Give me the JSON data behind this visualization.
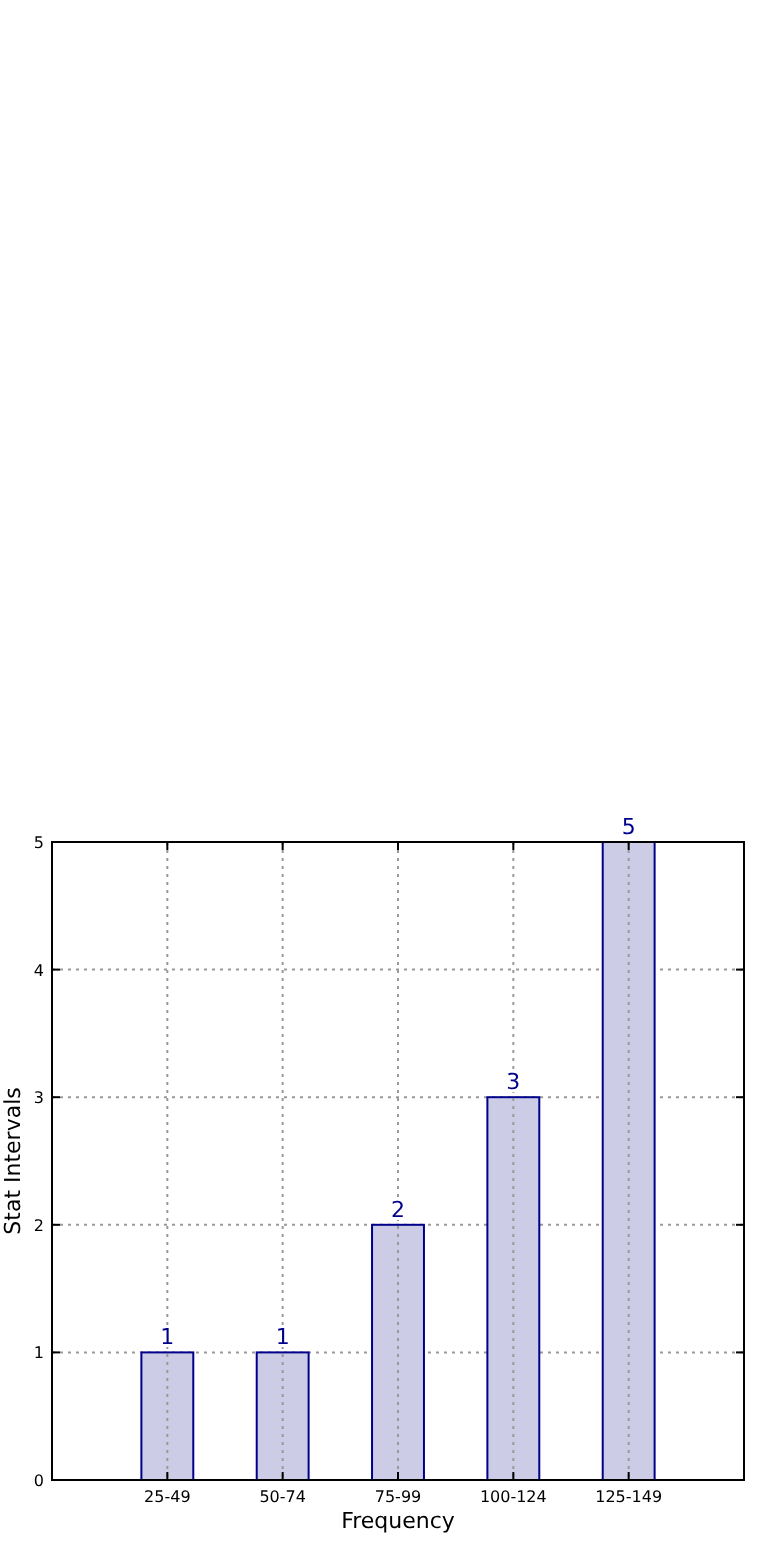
{
  "chart_data": {
    "type": "bar",
    "xlabel": "Frequency",
    "ylabel": "Stat Intervals",
    "categories": [
      "25-49",
      "50-74",
      "75-99",
      "100-124",
      "125-149"
    ],
    "values": [
      1,
      1,
      2,
      3,
      5
    ],
    "color": "#cccce6",
    "data_labels": true,
    "ylim": [
      0,
      5
    ],
    "yticks": [
      0,
      1,
      2,
      3,
      4,
      5
    ],
    "grid": true
  }
}
